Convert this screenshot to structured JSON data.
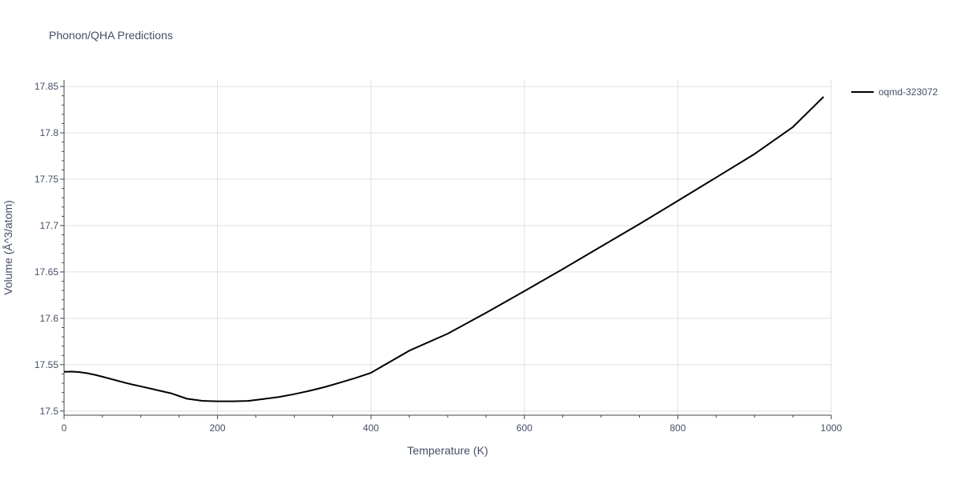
{
  "chart_data": {
    "type": "line",
    "title": "Phonon/QHA Predictions",
    "xlabel": "Temperature (K)",
    "ylabel": "Volume (Å^3/atom)",
    "xlim": [
      0,
      1000
    ],
    "ylim": [
      17.4955,
      17.857
    ],
    "x_ticks": [
      0,
      200,
      400,
      600,
      800,
      1000
    ],
    "y_ticks": [
      17.5,
      17.55,
      17.6,
      17.65,
      17.7,
      17.75,
      17.8,
      17.85
    ],
    "y_tick_labels": [
      "17.5",
      "17.55",
      "17.6",
      "17.65",
      "17.7",
      "17.75",
      "17.8",
      "17.85"
    ],
    "grid": true,
    "legend_position": "top-right",
    "series": [
      {
        "name": "oqmd-323072",
        "color": "#000000",
        "x": [
          0,
          10,
          20,
          30,
          40,
          50,
          60,
          70,
          80,
          90,
          100,
          120,
          140,
          160,
          180,
          200,
          220,
          240,
          260,
          280,
          300,
          320,
          340,
          360,
          380,
          400,
          450,
          500,
          550,
          600,
          650,
          700,
          750,
          800,
          850,
          900,
          950,
          990
        ],
        "y": [
          17.5423,
          17.5425,
          17.542,
          17.5408,
          17.5391,
          17.537,
          17.5348,
          17.5326,
          17.5304,
          17.5284,
          17.5266,
          17.5228,
          17.519,
          17.5133,
          17.511,
          17.5105,
          17.5105,
          17.5109,
          17.513,
          17.5151,
          17.5182,
          17.5218,
          17.5259,
          17.5307,
          17.5357,
          17.5412,
          17.5651,
          17.5834,
          17.6059,
          17.6293,
          17.6531,
          17.6774,
          17.7017,
          17.7267,
          17.7519,
          17.7772,
          17.8063,
          17.8389
        ]
      }
    ]
  }
}
